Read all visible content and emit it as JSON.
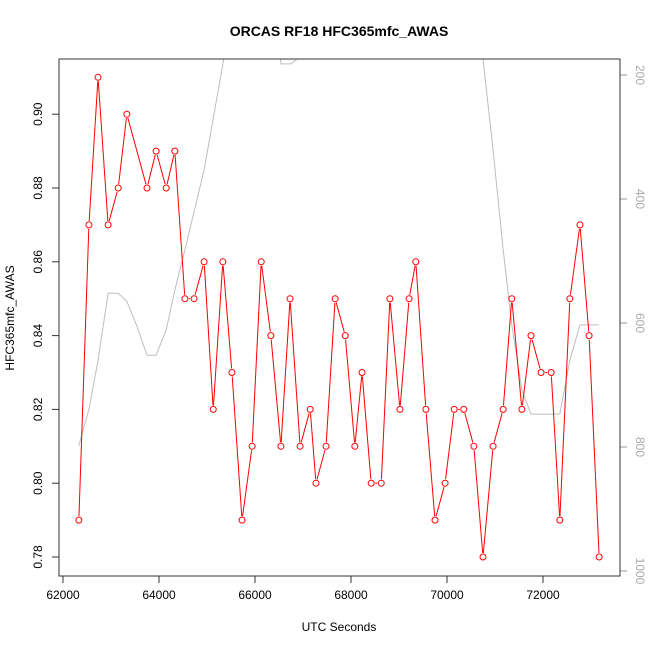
{
  "chart_data": {
    "type": "line",
    "title": "ORCAS RF18 HFC365mfc_AWAS",
    "xlabel": "UTC Seconds",
    "ylabel": "HFC365mfc_AWAS",
    "xlim": [
      61700,
      73500
    ],
    "ylim": [
      0.7747,
      0.915
    ],
    "y2lim": [
      1008,
      174
    ],
    "x_ticks": [
      62000,
      64000,
      66000,
      68000,
      70000,
      72000
    ],
    "y_ticks": [
      "0.78",
      "0.80",
      "0.82",
      "0.84",
      "0.86",
      "0.88",
      "0.90"
    ],
    "y2_ticks": [
      200,
      400,
      600,
      800,
      1000
    ],
    "grid": false,
    "colors": {
      "series": "#ff0000",
      "altitude": "#bebebe",
      "axis": "#333333"
    },
    "series": [
      {
        "x": [
          62330,
          62540,
          62730,
          62940,
          63150,
          63330,
          63750,
          63940,
          64150,
          64330,
          64540,
          64730,
          64940,
          65130,
          65330,
          65520,
          65730,
          65940,
          66130,
          66330,
          66540,
          66730,
          66940,
          67150,
          67270,
          67480,
          67670,
          67880,
          68080,
          68230,
          68420,
          68630,
          68810,
          69020,
          69210,
          69350,
          69560,
          69750,
          69960,
          70150,
          70350,
          70560,
          70750,
          70960,
          71170,
          71350,
          71560,
          71750,
          71960,
          72170,
          72350,
          72560,
          72770,
          72960,
          73170
        ],
        "y": [
          0.79,
          0.87,
          0.91,
          0.87,
          0.88,
          0.9,
          0.88,
          0.89,
          0.88,
          0.89,
          0.85,
          0.85,
          0.86,
          0.82,
          0.86,
          0.83,
          0.79,
          0.81,
          0.86,
          0.84,
          0.81,
          0.85,
          0.81,
          0.82,
          0.8,
          0.81,
          0.85,
          0.84,
          0.81,
          0.83,
          0.8,
          0.8,
          0.85,
          0.82,
          0.85,
          0.86,
          0.82,
          0.79,
          0.8,
          0.82,
          0.82,
          0.81,
          0.78,
          0.81,
          0.82,
          0.85,
          0.82,
          0.84,
          0.83,
          0.83,
          0.79,
          0.85,
          0.87,
          0.84,
          0.78
        ]
      },
      {
        "axis": "right",
        "x": [
          62330,
          62540,
          62730,
          62940,
          63150,
          63330,
          63540,
          63750,
          63940,
          64150,
          64330,
          64540,
          64940,
          65350,
          65580,
          66420,
          66540,
          66750,
          66880,
          67040,
          70580,
          70750,
          70960,
          71170,
          71350,
          71560,
          71750,
          72350,
          72560,
          72770,
          73170
        ],
        "y": [
          798,
          739,
          660,
          552,
          552,
          565,
          605,
          652,
          652,
          611,
          547,
          482,
          353,
          174,
          100,
          100,
          182,
          182,
          174,
          130,
          130,
          174,
          321,
          482,
          603,
          708,
          747,
          747,
          660,
          603,
          603
        ]
      }
    ]
  }
}
